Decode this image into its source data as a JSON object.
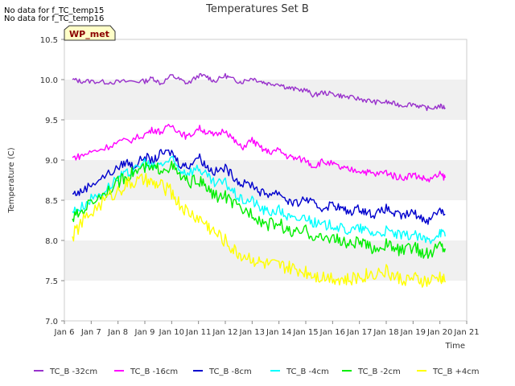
{
  "no_data_messages": [
    "No data for f_TC_temp15",
    "No data for f_TC_temp16"
  ],
  "site_label": "WP_met",
  "colors": {
    "site_label_bg": "#ffffc8",
    "site_label_text": "#8b0000",
    "band": "#f0f0f0"
  },
  "chart_data": {
    "type": "line",
    "title": "Temperatures Set B",
    "xlabel": "Time",
    "ylabel": "Temperature (C)",
    "xlim": [
      6,
      21
    ],
    "ylim": [
      7.0,
      10.5
    ],
    "x_ticks": [
      6,
      7,
      8,
      9,
      10,
      11,
      12,
      13,
      14,
      15,
      16,
      17,
      18,
      19,
      20,
      21
    ],
    "x_tick_labels": [
      "Jan 6",
      "Jan 7",
      "Jan 8",
      "Jan 9",
      "Jan 10",
      "Jan 11",
      "Jan 12",
      "Jan 13",
      "Jan 14",
      "Jan 15",
      "Jan 16",
      "Jan 17",
      "Jan 18",
      "Jan 19",
      "Jan 20",
      "Jan 21"
    ],
    "y_ticks": [
      7.0,
      7.5,
      8.0,
      8.5,
      9.0,
      9.5,
      10.0,
      10.5
    ],
    "y_tick_labels": [
      "7.0",
      "7.5",
      "8.0",
      "8.5",
      "9.0",
      "9.5",
      "10.0",
      "10.5"
    ],
    "grid": "horizontal alternating bands",
    "legend_position": "bottom",
    "series": [
      {
        "name": "TC_B -32cm",
        "color": "#9932cc",
        "points": [
          [
            6.3,
            10.0
          ],
          [
            6.6,
            9.98
          ],
          [
            7.0,
            9.98
          ],
          [
            7.5,
            9.97
          ],
          [
            8.0,
            9.97
          ],
          [
            8.5,
            9.98
          ],
          [
            9.0,
            9.98
          ],
          [
            9.3,
            10.02
          ],
          [
            9.6,
            9.95
          ],
          [
            10.0,
            10.05
          ],
          [
            10.3,
            10.0
          ],
          [
            10.6,
            9.95
          ],
          [
            11.0,
            10.05
          ],
          [
            11.3,
            10.04
          ],
          [
            11.6,
            9.98
          ],
          [
            12.0,
            10.05
          ],
          [
            12.3,
            10.0
          ],
          [
            12.6,
            9.97
          ],
          [
            13.0,
            10.02
          ],
          [
            13.3,
            9.98
          ],
          [
            13.6,
            9.95
          ],
          [
            14.0,
            9.95
          ],
          [
            14.3,
            9.9
          ],
          [
            14.6,
            9.88
          ],
          [
            15.0,
            9.87
          ],
          [
            15.3,
            9.8
          ],
          [
            15.6,
            9.84
          ],
          [
            16.0,
            9.82
          ],
          [
            16.3,
            9.8
          ],
          [
            16.6,
            9.78
          ],
          [
            17.0,
            9.76
          ],
          [
            17.3,
            9.74
          ],
          [
            17.6,
            9.72
          ],
          [
            18.0,
            9.72
          ],
          [
            18.3,
            9.7
          ],
          [
            18.6,
            9.68
          ],
          [
            19.0,
            9.7
          ],
          [
            19.3,
            9.66
          ],
          [
            19.6,
            9.64
          ],
          [
            20.0,
            9.67
          ],
          [
            20.2,
            9.65
          ]
        ]
      },
      {
        "name": "TC_B -16cm",
        "color": "#ff00ff",
        "points": [
          [
            6.3,
            9.03
          ],
          [
            6.6,
            9.05
          ],
          [
            7.0,
            9.1
          ],
          [
            7.5,
            9.15
          ],
          [
            8.0,
            9.22
          ],
          [
            8.5,
            9.25
          ],
          [
            9.0,
            9.32
          ],
          [
            9.3,
            9.38
          ],
          [
            9.6,
            9.35
          ],
          [
            10.0,
            9.43
          ],
          [
            10.3,
            9.35
          ],
          [
            10.6,
            9.28
          ],
          [
            11.0,
            9.4
          ],
          [
            11.3,
            9.35
          ],
          [
            11.6,
            9.3
          ],
          [
            12.0,
            9.38
          ],
          [
            12.3,
            9.25
          ],
          [
            12.6,
            9.15
          ],
          [
            13.0,
            9.25
          ],
          [
            13.3,
            9.15
          ],
          [
            13.6,
            9.1
          ],
          [
            14.0,
            9.12
          ],
          [
            14.3,
            9.05
          ],
          [
            14.6,
            9.02
          ],
          [
            15.0,
            9.0
          ],
          [
            15.3,
            8.92
          ],
          [
            15.6,
            8.98
          ],
          [
            16.0,
            8.95
          ],
          [
            16.3,
            8.9
          ],
          [
            16.6,
            8.88
          ],
          [
            17.0,
            8.87
          ],
          [
            17.3,
            8.85
          ],
          [
            17.6,
            8.82
          ],
          [
            18.0,
            8.85
          ],
          [
            18.3,
            8.8
          ],
          [
            18.6,
            8.78
          ],
          [
            19.0,
            8.82
          ],
          [
            19.3,
            8.78
          ],
          [
            19.6,
            8.75
          ],
          [
            20.0,
            8.82
          ],
          [
            20.2,
            8.78
          ]
        ]
      },
      {
        "name": "TC_B -8cm",
        "color": "#0000cd",
        "points": [
          [
            6.3,
            8.58
          ],
          [
            6.6,
            8.6
          ],
          [
            7.0,
            8.7
          ],
          [
            7.5,
            8.8
          ],
          [
            8.0,
            8.9
          ],
          [
            8.3,
            8.98
          ],
          [
            8.6,
            8.92
          ],
          [
            9.0,
            9.05
          ],
          [
            9.3,
            8.98
          ],
          [
            9.6,
            9.08
          ],
          [
            10.0,
            9.1
          ],
          [
            10.3,
            8.95
          ],
          [
            10.6,
            8.92
          ],
          [
            11.0,
            9.05
          ],
          [
            11.3,
            8.92
          ],
          [
            11.6,
            8.85
          ],
          [
            12.0,
            8.9
          ],
          [
            12.3,
            8.8
          ],
          [
            12.6,
            8.7
          ],
          [
            13.0,
            8.7
          ],
          [
            13.3,
            8.6
          ],
          [
            13.6,
            8.58
          ],
          [
            14.0,
            8.6
          ],
          [
            14.3,
            8.5
          ],
          [
            14.6,
            8.45
          ],
          [
            15.0,
            8.52
          ],
          [
            15.3,
            8.45
          ],
          [
            15.6,
            8.4
          ],
          [
            16.0,
            8.45
          ],
          [
            16.3,
            8.4
          ],
          [
            16.6,
            8.35
          ],
          [
            17.0,
            8.4
          ],
          [
            17.3,
            8.35
          ],
          [
            17.6,
            8.32
          ],
          [
            18.0,
            8.4
          ],
          [
            18.3,
            8.33
          ],
          [
            18.6,
            8.3
          ],
          [
            19.0,
            8.35
          ],
          [
            19.3,
            8.28
          ],
          [
            19.6,
            8.25
          ],
          [
            20.0,
            8.4
          ],
          [
            20.2,
            8.32
          ]
        ]
      },
      {
        "name": "TC_B -4cm",
        "color": "#00ffff",
        "points": [
          [
            6.3,
            8.36
          ],
          [
            6.6,
            8.4
          ],
          [
            7.0,
            8.52
          ],
          [
            7.5,
            8.62
          ],
          [
            8.0,
            8.78
          ],
          [
            8.3,
            8.82
          ],
          [
            8.6,
            8.86
          ],
          [
            9.0,
            8.98
          ],
          [
            9.3,
            8.9
          ],
          [
            9.6,
            8.95
          ],
          [
            10.0,
            9.0
          ],
          [
            10.3,
            8.88
          ],
          [
            10.6,
            8.85
          ],
          [
            11.0,
            8.9
          ],
          [
            11.3,
            8.8
          ],
          [
            11.6,
            8.7
          ],
          [
            12.0,
            8.72
          ],
          [
            12.3,
            8.6
          ],
          [
            12.6,
            8.5
          ],
          [
            13.0,
            8.5
          ],
          [
            13.3,
            8.4
          ],
          [
            13.6,
            8.35
          ],
          [
            14.0,
            8.38
          ],
          [
            14.3,
            8.3
          ],
          [
            14.6,
            8.25
          ],
          [
            15.0,
            8.3
          ],
          [
            15.3,
            8.22
          ],
          [
            15.6,
            8.18
          ],
          [
            16.0,
            8.2
          ],
          [
            16.3,
            8.15
          ],
          [
            16.6,
            8.12
          ],
          [
            17.0,
            8.15
          ],
          [
            17.3,
            8.12
          ],
          [
            17.6,
            8.08
          ],
          [
            18.0,
            8.12
          ],
          [
            18.3,
            8.08
          ],
          [
            18.6,
            8.05
          ],
          [
            19.0,
            8.08
          ],
          [
            19.3,
            8.02
          ],
          [
            19.6,
            8.0
          ],
          [
            20.0,
            8.12
          ],
          [
            20.2,
            8.05
          ]
        ]
      },
      {
        "name": "TC_B -2cm",
        "color": "#00ee00",
        "points": [
          [
            6.3,
            8.27
          ],
          [
            6.6,
            8.35
          ],
          [
            7.0,
            8.48
          ],
          [
            7.5,
            8.6
          ],
          [
            8.0,
            8.72
          ],
          [
            8.3,
            8.8
          ],
          [
            8.6,
            8.85
          ],
          [
            9.0,
            8.9
          ],
          [
            9.3,
            8.88
          ],
          [
            9.6,
            8.9
          ],
          [
            10.0,
            8.92
          ],
          [
            10.3,
            8.8
          ],
          [
            10.6,
            8.72
          ],
          [
            11.0,
            8.75
          ],
          [
            11.3,
            8.65
          ],
          [
            11.6,
            8.55
          ],
          [
            12.0,
            8.55
          ],
          [
            12.3,
            8.45
          ],
          [
            12.6,
            8.38
          ],
          [
            13.0,
            8.35
          ],
          [
            13.3,
            8.25
          ],
          [
            13.6,
            8.2
          ],
          [
            14.0,
            8.22
          ],
          [
            14.3,
            8.12
          ],
          [
            14.6,
            8.08
          ],
          [
            15.0,
            8.12
          ],
          [
            15.3,
            8.05
          ],
          [
            15.6,
            8.02
          ],
          [
            16.0,
            8.05
          ],
          [
            16.3,
            7.98
          ],
          [
            16.6,
            7.95
          ],
          [
            17.0,
            7.98
          ],
          [
            17.3,
            7.92
          ],
          [
            17.6,
            7.9
          ],
          [
            18.0,
            7.95
          ],
          [
            18.3,
            7.9
          ],
          [
            18.6,
            7.87
          ],
          [
            19.0,
            7.92
          ],
          [
            19.3,
            7.86
          ],
          [
            19.6,
            7.82
          ],
          [
            20.0,
            7.95
          ],
          [
            20.2,
            7.9
          ]
        ]
      },
      {
        "name": "TC_B +4cm",
        "color": "#ffff00",
        "points": [
          [
            6.3,
            8.05
          ],
          [
            6.6,
            8.2
          ],
          [
            7.0,
            8.35
          ],
          [
            7.5,
            8.5
          ],
          [
            8.0,
            8.62
          ],
          [
            8.3,
            8.7
          ],
          [
            8.6,
            8.72
          ],
          [
            9.0,
            8.75
          ],
          [
            9.3,
            8.7
          ],
          [
            9.6,
            8.68
          ],
          [
            10.0,
            8.6
          ],
          [
            10.3,
            8.45
          ],
          [
            10.6,
            8.35
          ],
          [
            11.0,
            8.28
          ],
          [
            11.3,
            8.2
          ],
          [
            11.6,
            8.1
          ],
          [
            12.0,
            8.0
          ],
          [
            12.3,
            7.88
          ],
          [
            12.6,
            7.82
          ],
          [
            13.0,
            7.78
          ],
          [
            13.3,
            7.72
          ],
          [
            13.6,
            7.7
          ],
          [
            14.0,
            7.68
          ],
          [
            14.3,
            7.66
          ],
          [
            14.6,
            7.64
          ],
          [
            15.0,
            7.62
          ],
          [
            15.3,
            7.58
          ],
          [
            15.6,
            7.55
          ],
          [
            16.0,
            7.55
          ],
          [
            16.3,
            7.52
          ],
          [
            16.6,
            7.5
          ],
          [
            17.0,
            7.55
          ],
          [
            17.3,
            7.58
          ],
          [
            17.6,
            7.6
          ],
          [
            18.0,
            7.62
          ],
          [
            18.3,
            7.55
          ],
          [
            18.6,
            7.52
          ],
          [
            19.0,
            7.52
          ],
          [
            19.3,
            7.5
          ],
          [
            19.6,
            7.48
          ],
          [
            20.0,
            7.55
          ],
          [
            20.2,
            7.48
          ]
        ]
      }
    ]
  }
}
